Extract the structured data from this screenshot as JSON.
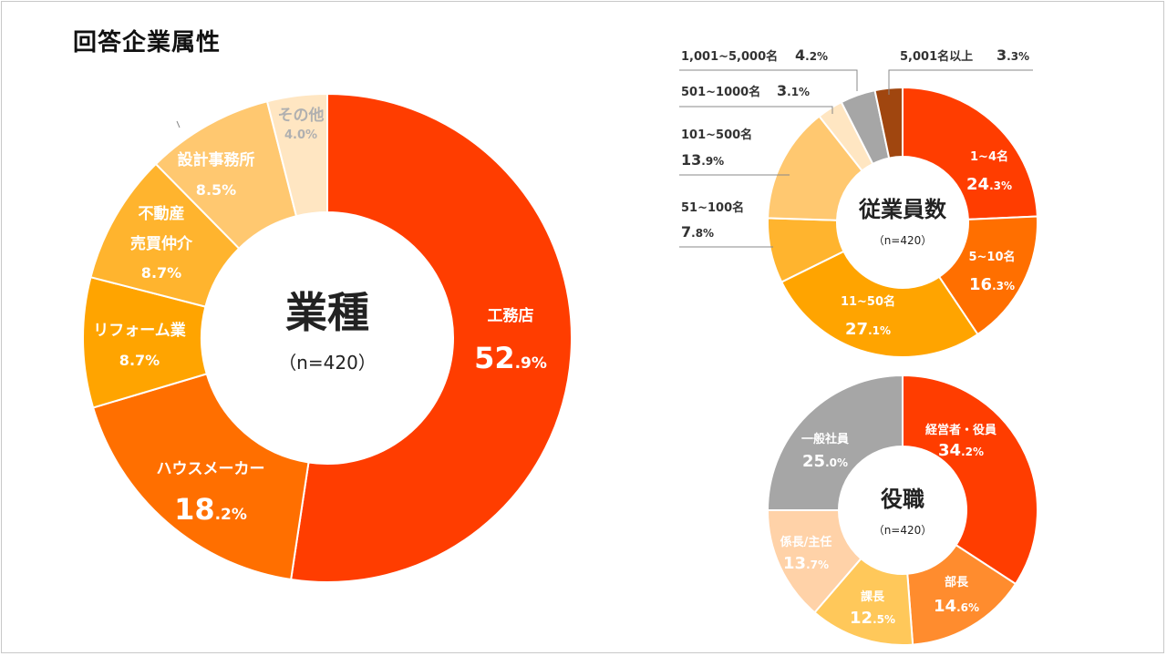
{
  "page_title": "回答企業属性",
  "chart_data": [
    {
      "type": "pie",
      "center_title": "業種",
      "center_subtitle": "（n=420）",
      "slices": [
        {
          "label": [
            "工務店"
          ],
          "whole": "52",
          "frac": ".9%",
          "value": 52.9,
          "color": "#FF3D00",
          "text_color": "#FFFFFF",
          "big": true
        },
        {
          "label": [
            "ハウスメーカー"
          ],
          "whole": "18",
          "frac": ".2%",
          "value": 18.2,
          "color": "#FF6F00",
          "text_color": "#FFFFFF",
          "big": true
        },
        {
          "label": [
            "リフォーム業"
          ],
          "whole": "8",
          "frac": ".7%",
          "value": 8.7,
          "color": "#FFA400",
          "text_color": "#FFFFFF"
        },
        {
          "label": [
            "不動産",
            "売買仲介"
          ],
          "whole": "8",
          "frac": ".7%",
          "value": 8.7,
          "color": "#FFB42E",
          "text_color": "#FFFFFF"
        },
        {
          "label": [
            "設計事務所"
          ],
          "whole": "8",
          "frac": ".5%",
          "value": 8.5,
          "color": "#FFC870",
          "text_color": "#FFFFFF"
        },
        {
          "label": [
            "その他"
          ],
          "whole": "4",
          "frac": ".0%",
          "value": 4.0,
          "color": "#FFE6C2",
          "text_color": "#B0B0B0"
        }
      ]
    },
    {
      "type": "pie",
      "center_title": "従業員数",
      "center_subtitle": "（n=420）",
      "slices": [
        {
          "label": [
            "1~4名"
          ],
          "whole": "24",
          "frac": ".3%",
          "value": 24.3,
          "color": "#FF3D00",
          "text_color": "#FFFFFF"
        },
        {
          "label": [
            "5~10名"
          ],
          "whole": "16",
          "frac": ".3%",
          "value": 16.3,
          "color": "#FF6F00",
          "text_color": "#FFFFFF"
        },
        {
          "label": [
            "11~50名"
          ],
          "whole": "27",
          "frac": ".1%",
          "value": 27.1,
          "color": "#FFA400",
          "text_color": "#FFFFFF"
        },
        {
          "label": [
            "51~100名"
          ],
          "whole": "7",
          "frac": ".8%",
          "value": 7.8,
          "color": "#FFB42E",
          "text_color": "#333333",
          "external": true
        },
        {
          "label": [
            "101~500名"
          ],
          "whole": "13",
          "frac": ".9%",
          "value": 13.9,
          "color": "#FFC870",
          "text_color": "#333333",
          "external": true
        },
        {
          "label": [
            "501~1000名"
          ],
          "whole": "3",
          "frac": ".1%",
          "value": 3.1,
          "color": "#FFE6C2",
          "text_color": "#333333",
          "external": true
        },
        {
          "label": [
            "1,001~5,000名"
          ],
          "whole": "4",
          "frac": ".2%",
          "value": 4.2,
          "color": "#A6A6A6",
          "text_color": "#333333",
          "external": true
        },
        {
          "label": [
            "5,001名以上"
          ],
          "whole": "3",
          "frac": ".3%",
          "value": 3.3,
          "color": "#A0460F",
          "text_color": "#333333",
          "external": true
        }
      ]
    },
    {
      "type": "pie",
      "center_title": "役職",
      "center_subtitle": "（n=420）",
      "slices": [
        {
          "label": [
            "経営者・役員"
          ],
          "whole": "34",
          "frac": ".2%",
          "value": 34.2,
          "color": "#FF3D00",
          "text_color": "#FFFFFF"
        },
        {
          "label": [
            "部長"
          ],
          "whole": "14",
          "frac": ".6%",
          "value": 14.6,
          "color": "#FF8C2E",
          "text_color": "#FFFFFF"
        },
        {
          "label": [
            "課長"
          ],
          "whole": "12",
          "frac": ".5%",
          "value": 12.5,
          "color": "#FFC85A",
          "text_color": "#FFFFFF"
        },
        {
          "label": [
            "係長/主任"
          ],
          "whole": "13",
          "frac": ".7%",
          "value": 13.7,
          "color": "#FFD2A8",
          "text_color": "#FFFFFF"
        },
        {
          "label": [
            "一般社員"
          ],
          "whole": "25",
          "frac": ".0%",
          "value": 25.0,
          "color": "#A6A6A6",
          "text_color": "#FFFFFF"
        }
      ]
    }
  ]
}
